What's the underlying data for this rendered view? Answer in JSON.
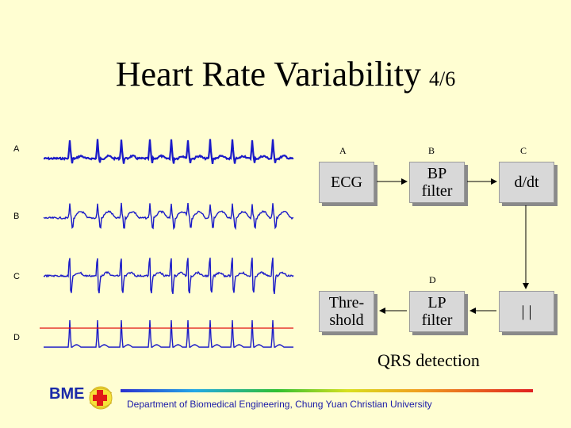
{
  "title": {
    "main": "Heart Rate Variability",
    "sub": "4/6"
  },
  "rows": [
    {
      "label": "A",
      "color": "#1a1ac8"
    },
    {
      "label": "B",
      "color": "#1a1ac8"
    },
    {
      "label": "C",
      "color": "#1a1ac8"
    },
    {
      "label": "D",
      "color": "#1a1ac8"
    }
  ],
  "threshold_color": "#e01010",
  "blocks": {
    "ecg": {
      "text": "ECG",
      "letter": "A"
    },
    "bp_filter": {
      "text": "BP\nfilter",
      "letter": "B"
    },
    "ddt": {
      "text": "d/dt",
      "letter": "C"
    },
    "threshold": {
      "text": "Thre-\nshold",
      "letter": ""
    },
    "lp_filter": {
      "text": "LP\nfilter",
      "letter": "D"
    },
    "abs": {
      "text": "| |",
      "letter": ""
    }
  },
  "caption": "QRS detection",
  "footer": {
    "logo": "BME",
    "department": "Department of Biomedical Engineering, Chung Yuan Christian University"
  }
}
